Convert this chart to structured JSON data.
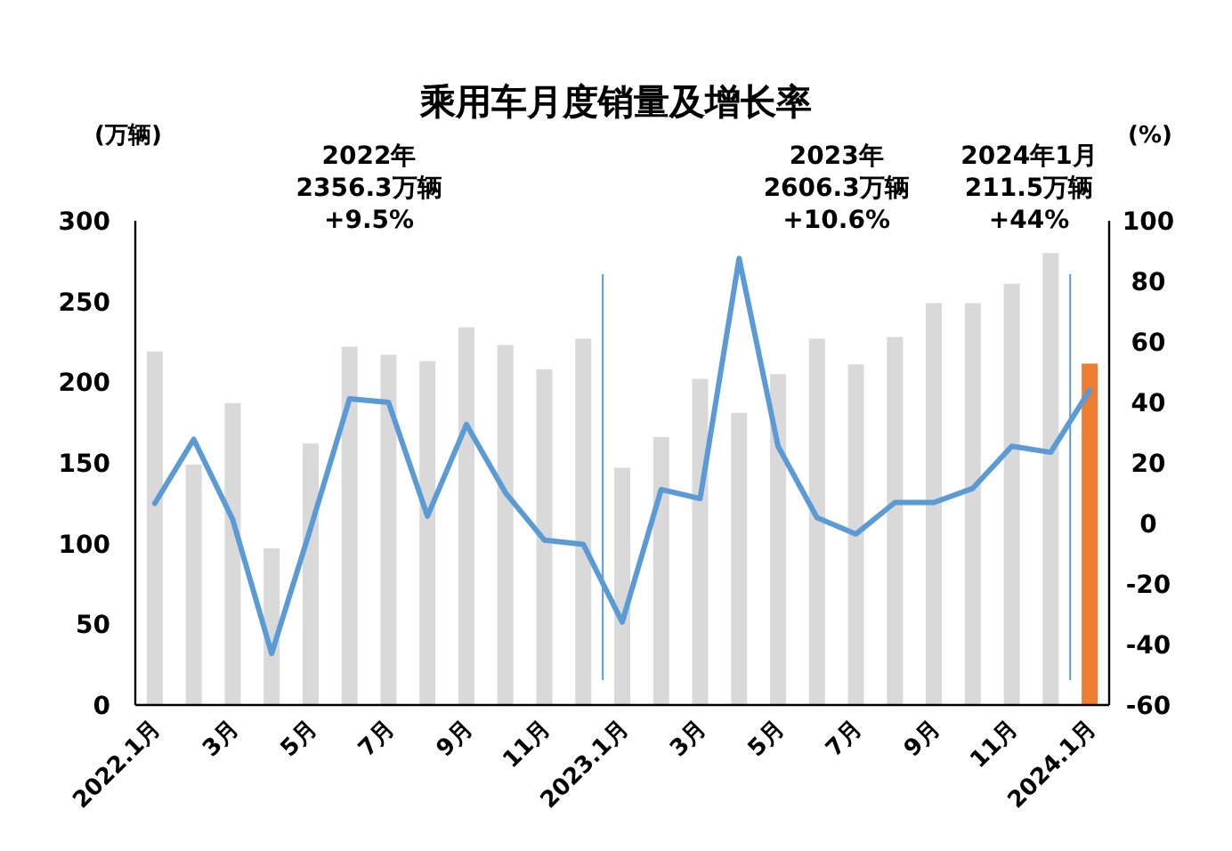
{
  "chart_data": {
    "type": "bar",
    "title": "乘用车月度销量及增长率",
    "ylabel": "(万辆)",
    "y2label": "(%)",
    "categories": [
      "2022.1月",
      null,
      "3月",
      null,
      "5月",
      null,
      "7月",
      null,
      "9月",
      null,
      "11月",
      null,
      "2023.1月",
      null,
      "3月",
      null,
      "5月",
      null,
      "7月",
      null,
      "9月",
      null,
      "11月",
      null,
      "2024.1月"
    ],
    "series": [
      {
        "colors": [
          "#d9d9d9",
          "#d9d9d9",
          "#d9d9d9",
          "#d9d9d9",
          "#d9d9d9",
          "#d9d9d9",
          "#d9d9d9",
          "#d9d9d9",
          "#d9d9d9",
          "#d9d9d9",
          "#d9d9d9",
          "#d9d9d9",
          "#d9d9d9",
          "#d9d9d9",
          "#d9d9d9",
          "#d9d9d9",
          "#d9d9d9",
          "#d9d9d9",
          "#d9d9d9",
          "#d9d9d9",
          "#d9d9d9",
          "#d9d9d9",
          "#d9d9d9",
          "#d9d9d9",
          "#ed7d31"
        ],
        "values": [
          219,
          149,
          187,
          97,
          162,
          222,
          217,
          213,
          234,
          223,
          208,
          227,
          147,
          166,
          202,
          181,
          205,
          227,
          211,
          228,
          249,
          249,
          261,
          280,
          211.5
        ]
      },
      {
        "type": "line",
        "axis": "y2",
        "color": "#5b9bd5",
        "values": [
          6.6,
          27.8,
          1.3,
          -43,
          -1.6,
          41.2,
          40,
          2.4,
          32.7,
          10.2,
          -5.5,
          -6.9,
          -32.6,
          11.2,
          8.2,
          87.6,
          25.5,
          1.9,
          -3.5,
          6.9,
          6.9,
          11.6,
          25.5,
          23.5,
          44
        ]
      }
    ],
    "ylim": [
      0,
      300
    ],
    "yticks": [
      0,
      50,
      100,
      150,
      200,
      250,
      300
    ],
    "y2lim": [
      -60,
      100
    ],
    "y2ticks": [
      -60,
      -40,
      -20,
      0,
      20,
      40,
      60,
      80,
      100
    ],
    "annotations": [
      "2022年\n2356.3万辆\n+9.5%",
      "2023年\n2606.3万辆\n+10.6%",
      "2024年1月\n211.5万辆\n+44%"
    ],
    "grid": false,
    "marker": "none"
  }
}
